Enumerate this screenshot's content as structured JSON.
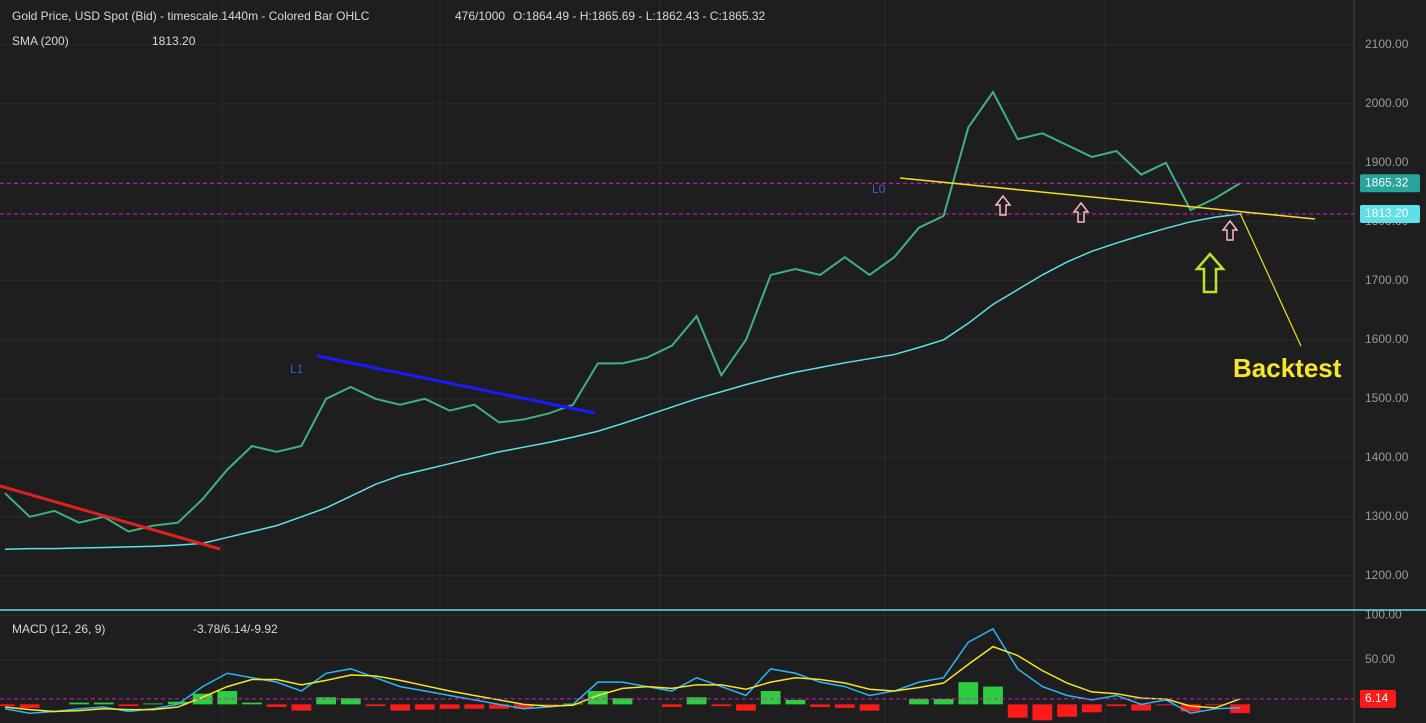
{
  "chart_data": [
    {
      "type": "line",
      "title": "Gold Price, USD Spot (Bid) - timescale.1440m - Colored Bar OHLC",
      "bar_count": "476/1000",
      "ohlc_text": "O:1864.49 - H:1865.69 - L:1862.43 - C:1865.32",
      "annotations": [
        "L1",
        "L0",
        "Backtest"
      ],
      "series": [
        {
          "color": "#3fb27f",
          "values": [
            1340,
            1300,
            1310,
            1290,
            1300,
            1275,
            1285,
            1290,
            1330,
            1380,
            1420,
            1410,
            1420,
            1500,
            1520,
            1500,
            1490,
            1500,
            1480,
            1490,
            1460,
            1465,
            1475,
            1490,
            1560,
            1560,
            1570,
            1590,
            1640,
            1540,
            1600,
            1710,
            1720,
            1710,
            1740,
            1710,
            1740,
            1790,
            1810,
            1960,
            2020,
            1940,
            1950,
            1930,
            1910,
            1920,
            1880,
            1900,
            1820,
            1840,
            1865.32
          ]
        },
        {
          "name": "SMA (200)",
          "color": "#5fe0e8",
          "values": [
            1245,
            1246,
            1246,
            1247,
            1248,
            1249,
            1250,
            1252,
            1255,
            1265,
            1275,
            1285,
            1300,
            1315,
            1335,
            1355,
            1370,
            1380,
            1390,
            1400,
            1410,
            1418,
            1426,
            1435,
            1445,
            1458,
            1472,
            1486,
            1500,
            1512,
            1524,
            1535,
            1545,
            1553,
            1561,
            1568,
            1575,
            1587,
            1600,
            1628,
            1660,
            1685,
            1710,
            1732,
            1750,
            1764,
            1777,
            1789,
            1800,
            1808,
            1813.2
          ]
        }
      ],
      "price_tags": [
        {
          "value": 1865.32,
          "label": "1865.32",
          "color": "#26a69a"
        },
        {
          "value": 1813.2,
          "label": "1813.20",
          "color": "#5fe0e8"
        }
      ],
      "ylim": [
        1142,
        2176
      ],
      "yticks": [
        {
          "value": 1200,
          "label": "1200.00"
        },
        {
          "value": 1300,
          "label": "1300.00"
        },
        {
          "value": 1400,
          "label": "1400.00"
        },
        {
          "value": 1500,
          "label": "1500.00"
        },
        {
          "value": 1600,
          "label": "1600.00"
        },
        {
          "value": 1700,
          "label": "1700.00"
        },
        {
          "value": 1800,
          "label": "1800.00"
        },
        {
          "value": 1900,
          "label": "1900.00"
        },
        {
          "value": 2000,
          "label": "2000.00"
        },
        {
          "value": 2100,
          "label": "2100.00"
        }
      ],
      "grid": true
    },
    {
      "type": "macd",
      "title": "MACD (12, 26, 9)",
      "status": "-3.78/6.14/-9.92",
      "series": [
        {
          "color": "#29b6f6",
          "values": [
            -5,
            -10,
            -8,
            -5,
            -3,
            -8,
            -5,
            0,
            20,
            35,
            30,
            25,
            15,
            35,
            40,
            30,
            20,
            15,
            10,
            5,
            0,
            -5,
            -3,
            0,
            25,
            25,
            20,
            15,
            30,
            20,
            10,
            40,
            35,
            25,
            20,
            10,
            15,
            25,
            30,
            70,
            85,
            40,
            20,
            10,
            5,
            10,
            0,
            5,
            -10,
            -5,
            -3.78
          ]
        },
        {
          "color": "#f5e62a",
          "values": [
            -3,
            -6,
            -8,
            -7,
            -5,
            -6,
            -6,
            -3,
            8,
            20,
            28,
            28,
            22,
            27,
            33,
            32,
            27,
            21,
            15,
            10,
            5,
            0,
            -2,
            -1,
            10,
            18,
            20,
            18,
            22,
            22,
            17,
            25,
            30,
            28,
            24,
            17,
            15,
            19,
            24,
            45,
            65,
            55,
            38,
            24,
            14,
            12,
            7,
            6,
            -2,
            -4,
            6.14
          ]
        }
      ],
      "histogram": [
        -2,
        -4,
        0,
        2,
        2,
        -2,
        1,
        3,
        12,
        15,
        2,
        -3,
        -7,
        8,
        7,
        -2,
        -7,
        -6,
        -5,
        -5,
        -5,
        -5,
        -1,
        1,
        15,
        7,
        0,
        -3,
        8,
        -2,
        -7,
        15,
        5,
        -3,
        -4,
        -7,
        0,
        6,
        6,
        25,
        20,
        -15,
        -18,
        -14,
        -9,
        -2,
        -7,
        -1,
        -8,
        -1,
        -9.92
      ],
      "up_color": "#2ecc40",
      "down_color": "#ff1a1a",
      "price_tags": [
        6.14
      ],
      "ylim": [
        -21,
        104
      ],
      "yticks": [
        {
          "value": 100,
          "label": "100.00"
        },
        {
          "value": 50,
          "label": "50.00"
        }
      ],
      "grid": true
    }
  ]
}
